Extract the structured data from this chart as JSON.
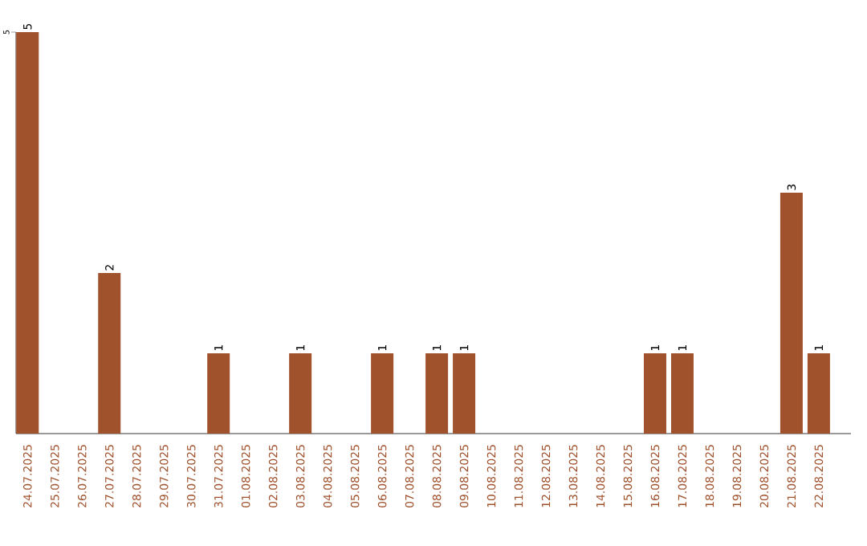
{
  "chart_data": {
    "type": "bar",
    "categories": [
      "24.07.2025",
      "25.07.2025",
      "26.07.2025",
      "27.07.2025",
      "28.07.2025",
      "29.07.2025",
      "30.07.2025",
      "31.07.2025",
      "01.08.2025",
      "02.08.2025",
      "03.08.2025",
      "04.08.2025",
      "05.08.2025",
      "06.08.2025",
      "07.08.2025",
      "08.08.2025",
      "09.08.2025",
      "10.08.2025",
      "11.08.2025",
      "12.08.2025",
      "13.08.2025",
      "14.08.2025",
      "15.08.2025",
      "16.08.2025",
      "17.08.2025",
      "18.08.2025",
      "19.08.2025",
      "20.08.2025",
      "21.08.2025",
      "22.08.2025"
    ],
    "values": [
      5,
      0,
      0,
      2,
      0,
      0,
      0,
      1,
      0,
      0,
      1,
      0,
      0,
      1,
      0,
      1,
      1,
      0,
      0,
      0,
      0,
      0,
      0,
      1,
      1,
      0,
      0,
      0,
      3,
      1
    ],
    "value_labels": [
      "5",
      null,
      null,
      "2",
      null,
      null,
      null,
      "1",
      null,
      null,
      "1",
      null,
      null,
      "1",
      null,
      "1",
      "1",
      null,
      null,
      null,
      null,
      null,
      null,
      "1",
      "1",
      null,
      null,
      null,
      "3",
      "1"
    ],
    "color": "#a0522d",
    "ylim": [
      0,
      5
    ],
    "yticks": [
      5
    ]
  }
}
